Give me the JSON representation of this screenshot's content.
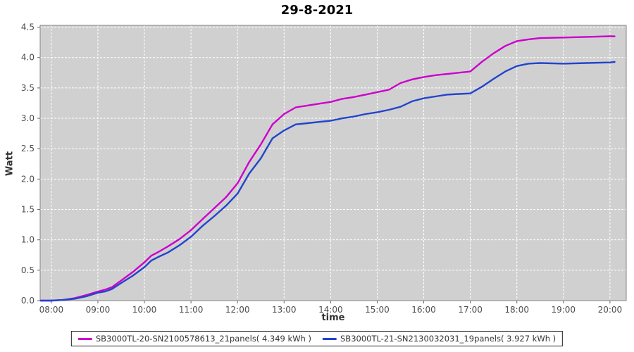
{
  "title": "29-8-2021",
  "axes": {
    "x_label": "time",
    "y_label": "Watt",
    "x_tick_labels": [
      "08:00",
      "09:00",
      "10:00",
      "11:00",
      "12:00",
      "13:00",
      "14:00",
      "15:00",
      "16:00",
      "17:00",
      "18:00",
      "19:00",
      "20:00"
    ],
    "y_tick_labels": [
      "0.0",
      "0.5",
      "1.0",
      "1.5",
      "2.0",
      "2.5",
      "3.0",
      "3.5",
      "4.0",
      "4.5"
    ]
  },
  "colors": {
    "plot_background": "#d0d0d0",
    "grid": "#ffffff",
    "plot_border": "#848484",
    "tick_mark": "#666666",
    "tick_text": "#4d4d4d",
    "series_magenta": "#cc00cc",
    "series_blue": "#2244cc"
  },
  "chart_data": {
    "type": "line",
    "title": "29-8-2021",
    "xlabel": "time",
    "ylabel": "Watt",
    "x_view": [
      7.76,
      20.35
    ],
    "ylim": [
      0,
      4.53
    ],
    "x_tick_hours": [
      8,
      9,
      10,
      11,
      12,
      13,
      14,
      15,
      16,
      17,
      18,
      19,
      20
    ],
    "y_tick_values": [
      0,
      0.5,
      1,
      1.5,
      2,
      2.5,
      3,
      3.5,
      4,
      4.5
    ],
    "grid": true,
    "legend_position": "bottom",
    "x": [
      7.77,
      8.0,
      8.25,
      8.5,
      8.75,
      9.0,
      9.15,
      9.3,
      9.5,
      9.75,
      10.0,
      10.15,
      10.3,
      10.5,
      10.75,
      11.0,
      11.25,
      11.5,
      11.75,
      12.0,
      12.25,
      12.5,
      12.75,
      13.0,
      13.25,
      13.5,
      13.75,
      14.0,
      14.25,
      14.5,
      14.75,
      15.0,
      15.25,
      15.5,
      15.75,
      16.0,
      16.25,
      16.5,
      16.75,
      17.0,
      17.25,
      17.5,
      17.75,
      18.0,
      18.25,
      18.5,
      19.0,
      19.5,
      20.0,
      20.1
    ],
    "series": [
      {
        "name": "SB3000TL-20-SN2100578613_21panels( 4.349 kWh )",
        "total_kwh": 4.349,
        "color": "#cc00cc",
        "values": [
          0.0,
          0.0,
          0.01,
          0.04,
          0.09,
          0.15,
          0.18,
          0.22,
          0.33,
          0.47,
          0.63,
          0.74,
          0.8,
          0.89,
          1.01,
          1.16,
          1.34,
          1.52,
          1.7,
          1.93,
          2.28,
          2.57,
          2.9,
          3.07,
          3.18,
          3.21,
          3.24,
          3.27,
          3.32,
          3.35,
          3.39,
          3.43,
          3.47,
          3.58,
          3.64,
          3.68,
          3.71,
          3.73,
          3.75,
          3.77,
          3.93,
          4.07,
          4.19,
          4.27,
          4.3,
          4.32,
          4.33,
          4.34,
          4.35,
          4.349
        ]
      },
      {
        "name": "SB3000TL-21-SN2130032031_19panels( 3.927 kWh )",
        "total_kwh": 3.927,
        "color": "#2244cc",
        "values": [
          0.0,
          0.0,
          0.01,
          0.03,
          0.07,
          0.13,
          0.15,
          0.19,
          0.29,
          0.41,
          0.55,
          0.66,
          0.72,
          0.79,
          0.91,
          1.05,
          1.23,
          1.39,
          1.56,
          1.76,
          2.09,
          2.34,
          2.67,
          2.8,
          2.9,
          2.92,
          2.94,
          2.96,
          3.0,
          3.03,
          3.07,
          3.1,
          3.14,
          3.19,
          3.28,
          3.33,
          3.36,
          3.39,
          3.4,
          3.41,
          3.52,
          3.65,
          3.77,
          3.86,
          3.9,
          3.91,
          3.9,
          3.91,
          3.92,
          3.927
        ]
      }
    ]
  }
}
